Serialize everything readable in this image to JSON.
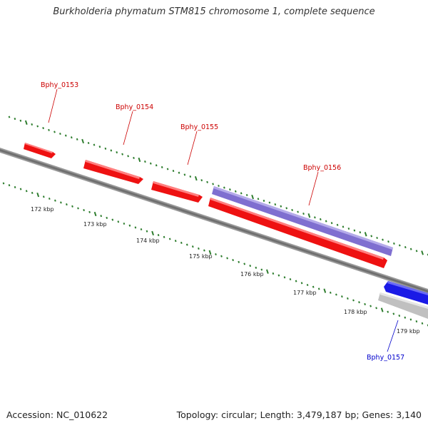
{
  "title": "Burkholderia phymatum STM815 chromosome 1, complete sequence",
  "footer": {
    "accession": "Accession: NC_010622",
    "summary": "Topology: circular; Length: 3,479,187 bp; Genes: 3,140"
  },
  "colors": {
    "gene_forward": "#ee1111",
    "gene_label_forward": "#cc0000",
    "gene_label_reverse": "#0000cc",
    "cds_purple": "#7f6fd0",
    "cds_blue": "#1a1ae6",
    "cds_gray": "#c0c0c0",
    "backbone": "#777777",
    "ticks": "#2e7d2e"
  },
  "scale_labels": [
    "172 kbp",
    "173 kbp",
    "174 kbp",
    "175 kbp",
    "176 kbp",
    "177 kbp",
    "178 kbp",
    "179 kbp"
  ],
  "genes": [
    {
      "name": "Bphy_0153",
      "strand": "forward",
      "type": "gene"
    },
    {
      "name": "Bphy_0154",
      "strand": "forward",
      "type": "gene"
    },
    {
      "name": "Bphy_0155",
      "strand": "forward",
      "type": "gene"
    },
    {
      "name": "Bphy_0156",
      "strand": "forward",
      "type": "gene"
    },
    {
      "name": "Bphy_0157",
      "strand": "reverse",
      "type": "gene"
    }
  ]
}
